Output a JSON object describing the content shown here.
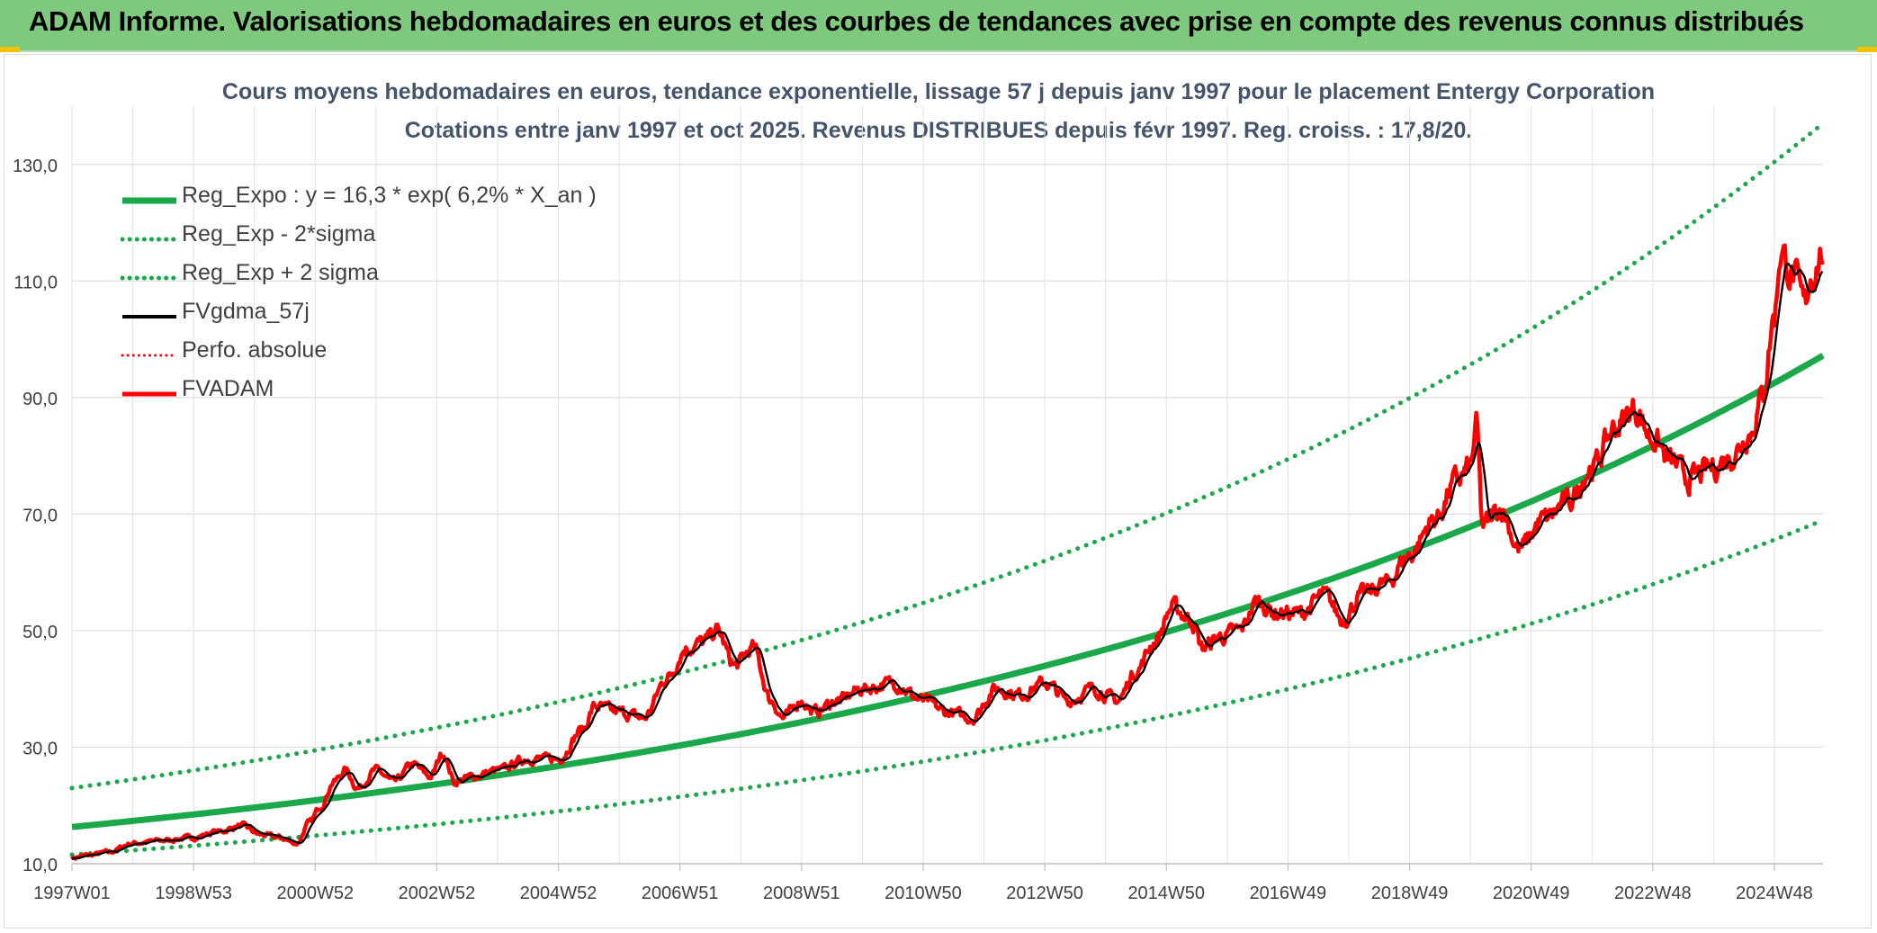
{
  "banner": {
    "title": "ADAM Informe. Valorisations hebdomadaires en euros et des courbes de tendances avec prise en compte des revenus connus distribués"
  },
  "colors": {
    "banner_bg": "#7ec97e",
    "trend_green": "#1aa84a",
    "price_red": "#ff0000",
    "smooth_black": "#000000",
    "title_text": "#44546a"
  },
  "chart_data": {
    "type": "line",
    "title": "Cours moyens hebdomadaires en euros, tendance exponentielle, lissage 57 j depuis janv 1997 pour le placement Entergy Corporation",
    "subtitle": "Cotations entre janv 1997 et oct 2025. Revenus DISTRIBUES depuis févr 1997. Reg. croiss. : 17,8/20.",
    "xlabel": "",
    "ylabel": "",
    "x_range": [
      1997.0,
      2025.8
    ],
    "ylim": [
      10,
      140
    ],
    "y_ticks": [
      10,
      30,
      50,
      70,
      90,
      110,
      130
    ],
    "y_tick_labels": [
      "10,0",
      "30,0",
      "50,0",
      "70,0",
      "90,0",
      "110,0",
      "130,0"
    ],
    "x_ticks": [
      {
        "label": "1997W01",
        "x": 1997.0
      },
      {
        "label": "1998W53",
        "x": 1999.0
      },
      {
        "label": "2000W52",
        "x": 2001.0
      },
      {
        "label": "2002W52",
        "x": 2003.0
      },
      {
        "label": "2004W52",
        "x": 2005.0
      },
      {
        "label": "2006W51",
        "x": 2007.0
      },
      {
        "label": "2008W51",
        "x": 2009.0
      },
      {
        "label": "2010W50",
        "x": 2011.0
      },
      {
        "label": "2012W50",
        "x": 2013.0
      },
      {
        "label": "2014W50",
        "x": 2015.0
      },
      {
        "label": "2016W49",
        "x": 2017.0
      },
      {
        "label": "2018W49",
        "x": 2019.0
      },
      {
        "label": "2020W49",
        "x": 2021.0
      },
      {
        "label": "2022W48",
        "x": 2023.0
      },
      {
        "label": "2024W48",
        "x": 2025.0
      }
    ],
    "grid": true,
    "legend_position": "top-left",
    "regression": {
      "a": 16.3,
      "rate": 0.062,
      "x0": 1997.0,
      "sigma_factor": 1.41
    },
    "series": [
      {
        "name": "Reg_Expo : y = 16,3 * exp( 6,2% *  X_an )",
        "kind": "reg",
        "color": "#1aa84a",
        "style": "solid"
      },
      {
        "name": "Reg_Exp - 2*sigma",
        "kind": "reg_low",
        "color": "#1aa84a",
        "style": "dotted"
      },
      {
        "name": "Reg_Exp + 2 sigma",
        "kind": "reg_high",
        "color": "#1aa84a",
        "style": "dotted"
      },
      {
        "name": "FVgdma_57j",
        "kind": "smooth",
        "color": "#000000",
        "style": "solid"
      },
      {
        "name": "Perfo. absolue",
        "kind": "none",
        "color": "#ff0000",
        "style": "dotted"
      },
      {
        "name": "FVADAM",
        "kind": "price",
        "color": "#ff0000",
        "style": "solid"
      }
    ],
    "fvadam": {
      "x": [
        1997.0,
        1997.3,
        1997.6,
        1998.0,
        1998.5,
        1999.0,
        1999.4,
        1999.8,
        2000.1,
        2000.4,
        2000.7,
        2000.9,
        2001.1,
        2001.3,
        2001.5,
        2001.7,
        2002.0,
        2002.3,
        2002.6,
        2002.9,
        2003.1,
        2003.3,
        2003.6,
        2004.0,
        2004.5,
        2005.0,
        2005.4,
        2005.6,
        2006.0,
        2006.4,
        2006.8,
        2007.1,
        2007.4,
        2007.6,
        2007.9,
        2008.2,
        2008.5,
        2008.7,
        2009.0,
        2009.2,
        2009.6,
        2010.0,
        2010.5,
        2011.0,
        2011.4,
        2011.8,
        2012.2,
        2012.6,
        2013.0,
        2013.4,
        2013.8,
        2014.2,
        2014.5,
        2014.8,
        2015.1,
        2015.4,
        2015.6,
        2015.9,
        2016.2,
        2016.5,
        2016.8,
        2017.2,
        2017.6,
        2017.9,
        2018.2,
        2018.6,
        2019.0,
        2019.4,
        2019.8,
        2020.0,
        2020.1,
        2020.2,
        2020.5,
        2020.8,
        2021.2,
        2021.6,
        2022.0,
        2022.4,
        2022.7,
        2023.0,
        2023.3,
        2023.6,
        2024.0,
        2024.3,
        2024.6,
        2024.8,
        2025.0,
        2025.1,
        2025.3,
        2025.5,
        2025.6,
        2025.8
      ],
      "y": [
        11,
        11.5,
        12,
        13.5,
        14,
        14.5,
        15.5,
        16.5,
        15,
        14.5,
        13.5,
        17,
        20,
        24,
        26,
        23,
        26,
        24,
        27,
        25,
        29,
        24,
        25,
        26,
        28,
        28,
        33,
        37,
        36,
        35,
        42,
        47,
        48,
        50,
        44,
        47,
        38,
        35,
        38,
        36,
        38,
        40,
        41,
        38,
        36,
        35,
        40,
        39,
        41,
        38,
        40,
        38,
        43,
        48,
        54,
        52,
        47,
        49,
        50,
        55,
        53,
        53,
        56,
        52,
        56,
        58,
        63,
        69,
        76,
        78,
        85,
        68,
        71,
        64,
        69,
        72,
        78,
        85,
        88,
        83,
        79,
        76,
        78,
        80,
        84,
        90,
        104,
        115,
        111,
        106,
        111,
        115
      ]
    }
  }
}
